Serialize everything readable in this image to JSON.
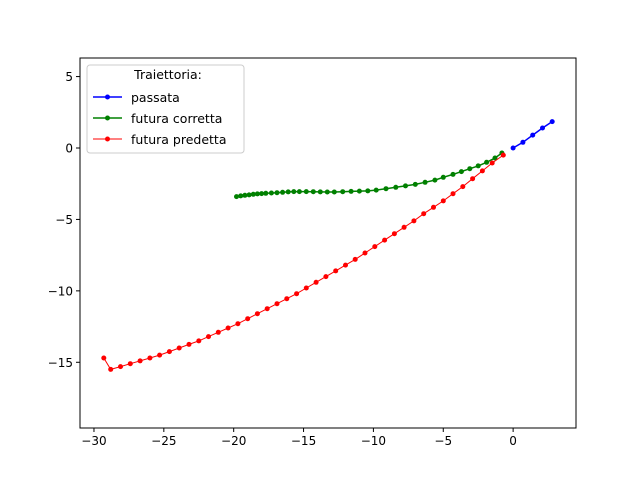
{
  "chart_data": {
    "type": "line",
    "title": "",
    "xlabel": "",
    "ylabel": "",
    "xlim": [
      -31.0,
      4.5
    ],
    "ylim": [
      -19.6,
      6.3
    ],
    "xticks": [
      -30,
      -25,
      -20,
      -15,
      -10,
      -5,
      0
    ],
    "yticks": [
      5,
      0,
      -5,
      -10,
      -15
    ],
    "grid": false,
    "legend": {
      "title": "Traiettoria:",
      "placement": "top-left"
    },
    "series": [
      {
        "name": "passata",
        "color": "#0000ff",
        "x": [
          0.0,
          0.7,
          1.4,
          2.1,
          2.8
        ],
        "y": [
          0.0,
          0.4,
          0.9,
          1.4,
          1.85
        ]
      },
      {
        "name": "futura corretta",
        "color": "#008000",
        "x": [
          -0.8,
          -1.3,
          -1.9,
          -2.5,
          -3.1,
          -3.7,
          -4.3,
          -5.0,
          -5.6,
          -6.3,
          -7.0,
          -7.7,
          -8.4,
          -9.1,
          -9.8,
          -10.4,
          -11.0,
          -11.6,
          -12.2,
          -12.8,
          -13.3,
          -13.8,
          -14.3,
          -14.8,
          -15.3,
          -15.7,
          -16.1,
          -16.5,
          -16.9,
          -17.3,
          -17.7,
          -18.0,
          -18.3,
          -18.6,
          -18.9,
          -19.2,
          -19.5,
          -19.8
        ],
        "y": [
          -0.35,
          -0.7,
          -1.0,
          -1.25,
          -1.45,
          -1.65,
          -1.85,
          -2.05,
          -2.25,
          -2.4,
          -2.55,
          -2.65,
          -2.75,
          -2.85,
          -2.95,
          -3.0,
          -3.02,
          -3.04,
          -3.06,
          -3.08,
          -3.08,
          -3.07,
          -3.06,
          -3.05,
          -3.05,
          -3.05,
          -3.07,
          -3.1,
          -3.13,
          -3.15,
          -3.17,
          -3.19,
          -3.21,
          -3.24,
          -3.28,
          -3.31,
          -3.35,
          -3.4
        ]
      },
      {
        "name": "futura predetta",
        "color": "#ff0000",
        "x": [
          -0.7,
          -1.5,
          -2.2,
          -2.9,
          -3.6,
          -4.3,
          -5.0,
          -5.7,
          -6.4,
          -7.1,
          -7.8,
          -8.5,
          -9.2,
          -9.9,
          -10.6,
          -11.3,
          -12.0,
          -12.7,
          -13.4,
          -14.1,
          -14.8,
          -15.5,
          -16.2,
          -16.9,
          -17.6,
          -18.3,
          -19.0,
          -19.7,
          -20.4,
          -21.1,
          -21.8,
          -22.5,
          -23.2,
          -23.9,
          -24.6,
          -25.3,
          -26.0,
          -26.7,
          -27.4,
          -28.1,
          -28.8,
          -29.3
        ],
        "y": [
          -0.5,
          -1.05,
          -1.6,
          -2.15,
          -2.7,
          -3.2,
          -3.7,
          -4.15,
          -4.6,
          -5.1,
          -5.55,
          -6.0,
          -6.45,
          -6.9,
          -7.35,
          -7.8,
          -8.2,
          -8.6,
          -9.0,
          -9.4,
          -9.8,
          -10.2,
          -10.55,
          -10.9,
          -11.25,
          -11.6,
          -11.95,
          -12.3,
          -12.6,
          -12.9,
          -13.2,
          -13.5,
          -13.75,
          -14.0,
          -14.25,
          -14.5,
          -14.7,
          -14.9,
          -15.1,
          -15.3,
          -15.5,
          -14.7
        ]
      }
    ]
  }
}
